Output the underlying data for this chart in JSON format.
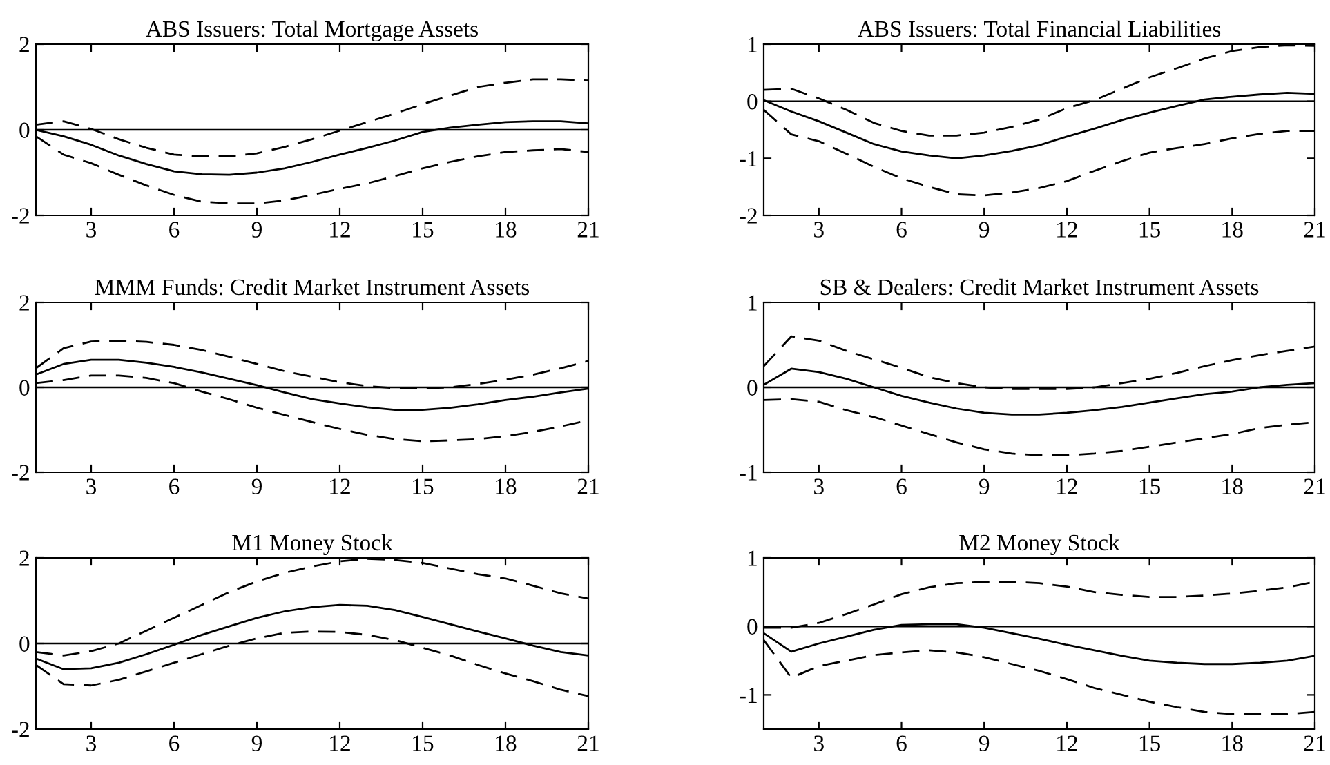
{
  "chart_data": [
    {
      "type": "line",
      "title": "ABS Issuers: Total Mortgage Assets",
      "x": [
        1,
        2,
        3,
        4,
        5,
        6,
        7,
        8,
        9,
        10,
        11,
        12,
        13,
        14,
        15,
        16,
        17,
        18,
        19,
        20,
        21
      ],
      "xlim": [
        1,
        21
      ],
      "xticks": [
        3,
        6,
        9,
        12,
        15,
        18,
        21
      ],
      "ylim": [
        -2,
        2
      ],
      "yticks": [
        -2,
        0,
        2
      ],
      "grid": false,
      "legend": false,
      "ref_lines": [
        {
          "axis": "y",
          "value": 0,
          "color": "#000000",
          "line_style": "solid"
        }
      ],
      "series": [
        {
          "color": "#000000",
          "line_style": "dashed",
          "values": [
            0.12,
            0.2,
            0.02,
            -0.22,
            -0.42,
            -0.58,
            -0.62,
            -0.62,
            -0.55,
            -0.4,
            -0.22,
            -0.02,
            0.18,
            0.38,
            0.6,
            0.8,
            1.0,
            1.1,
            1.18,
            1.18,
            1.15
          ]
        },
        {
          "color": "#000000",
          "line_style": "solid",
          "values": [
            0,
            -0.15,
            -0.35,
            -0.6,
            -0.8,
            -0.97,
            -1.04,
            -1.05,
            -1.0,
            -0.9,
            -0.75,
            -0.58,
            -0.42,
            -0.25,
            -0.05,
            0.05,
            0.12,
            0.18,
            0.2,
            0.2,
            0.15
          ]
        },
        {
          "color": "#000000",
          "line_style": "dashed",
          "values": [
            -0.15,
            -0.58,
            -0.78,
            -1.05,
            -1.3,
            -1.52,
            -1.68,
            -1.72,
            -1.72,
            -1.65,
            -1.52,
            -1.38,
            -1.25,
            -1.08,
            -0.9,
            -0.75,
            -0.62,
            -0.52,
            -0.48,
            -0.45,
            -0.52
          ]
        }
      ]
    },
    {
      "type": "line",
      "title": "ABS Issuers: Total Financial Liabilities",
      "x": [
        1,
        2,
        3,
        4,
        5,
        6,
        7,
        8,
        9,
        10,
        11,
        12,
        13,
        14,
        15,
        16,
        17,
        18,
        19,
        20,
        21
      ],
      "xlim": [
        1,
        21
      ],
      "xticks": [
        3,
        6,
        9,
        12,
        15,
        18,
        21
      ],
      "ylim": [
        -2,
        1
      ],
      "yticks": [
        -2,
        -1,
        0,
        1
      ],
      "grid": false,
      "legend": false,
      "ref_lines": [
        {
          "axis": "y",
          "value": 0,
          "color": "#000000",
          "line_style": "solid"
        }
      ],
      "series": [
        {
          "color": "#000000",
          "line_style": "dashed",
          "values": [
            0.2,
            0.22,
            0.05,
            -0.15,
            -0.38,
            -0.52,
            -0.6,
            -0.6,
            -0.55,
            -0.45,
            -0.32,
            -0.12,
            0.02,
            0.22,
            0.42,
            0.58,
            0.75,
            0.88,
            0.95,
            0.98,
            0.97
          ]
        },
        {
          "color": "#000000",
          "line_style": "solid",
          "values": [
            0.02,
            -0.18,
            -0.35,
            -0.55,
            -0.75,
            -0.88,
            -0.95,
            -1.0,
            -0.95,
            -0.87,
            -0.77,
            -0.62,
            -0.48,
            -0.33,
            -0.2,
            -0.08,
            0.03,
            0.08,
            0.12,
            0.15,
            0.13
          ]
        },
        {
          "color": "#000000",
          "line_style": "dashed",
          "values": [
            -0.15,
            -0.58,
            -0.7,
            -0.92,
            -1.15,
            -1.35,
            -1.5,
            -1.63,
            -1.65,
            -1.6,
            -1.52,
            -1.4,
            -1.22,
            -1.05,
            -0.9,
            -0.82,
            -0.75,
            -0.65,
            -0.57,
            -0.52,
            -0.52
          ]
        }
      ]
    },
    {
      "type": "line",
      "title": "MMM Funds: Credit Market Instrument Assets",
      "x": [
        1,
        2,
        3,
        4,
        5,
        6,
        7,
        8,
        9,
        10,
        11,
        12,
        13,
        14,
        15,
        16,
        17,
        18,
        19,
        20,
        21
      ],
      "xlim": [
        1,
        21
      ],
      "xticks": [
        3,
        6,
        9,
        12,
        15,
        18,
        21
      ],
      "ylim": [
        -2,
        2
      ],
      "yticks": [
        -2,
        0,
        2
      ],
      "grid": false,
      "legend": false,
      "ref_lines": [
        {
          "axis": "y",
          "value": 0,
          "color": "#000000",
          "line_style": "solid"
        }
      ],
      "series": [
        {
          "color": "#000000",
          "line_style": "dashed",
          "values": [
            0.45,
            0.92,
            1.08,
            1.1,
            1.07,
            1.0,
            0.88,
            0.72,
            0.55,
            0.38,
            0.25,
            0.12,
            0.03,
            -0.02,
            -0.02,
            0.0,
            0.08,
            0.18,
            0.3,
            0.45,
            0.62
          ]
        },
        {
          "color": "#000000",
          "line_style": "solid",
          "values": [
            0.3,
            0.55,
            0.65,
            0.65,
            0.58,
            0.48,
            0.35,
            0.2,
            0.05,
            -0.12,
            -0.28,
            -0.38,
            -0.47,
            -0.53,
            -0.53,
            -0.48,
            -0.4,
            -0.3,
            -0.22,
            -0.12,
            -0.03
          ]
        },
        {
          "color": "#000000",
          "line_style": "dashed",
          "values": [
            0.1,
            0.17,
            0.28,
            0.28,
            0.22,
            0.1,
            -0.1,
            -0.28,
            -0.48,
            -0.65,
            -0.82,
            -0.98,
            -1.12,
            -1.22,
            -1.27,
            -1.25,
            -1.22,
            -1.15,
            -1.05,
            -0.92,
            -0.78
          ]
        }
      ]
    },
    {
      "type": "line",
      "title": "SB & Dealers: Credit Market Instrument Assets",
      "x": [
        1,
        2,
        3,
        4,
        5,
        6,
        7,
        8,
        9,
        10,
        11,
        12,
        13,
        14,
        15,
        16,
        17,
        18,
        19,
        20,
        21
      ],
      "xlim": [
        1,
        21
      ],
      "xticks": [
        3,
        6,
        9,
        12,
        15,
        18,
        21
      ],
      "ylim": [
        -1,
        1
      ],
      "yticks": [
        -1,
        0,
        1
      ],
      "grid": false,
      "legend": false,
      "ref_lines": [
        {
          "axis": "y",
          "value": 0,
          "color": "#000000",
          "line_style": "solid"
        }
      ],
      "series": [
        {
          "color": "#000000",
          "line_style": "dashed",
          "values": [
            0.25,
            0.6,
            0.55,
            0.43,
            0.33,
            0.23,
            0.12,
            0.05,
            0.0,
            -0.02,
            -0.02,
            -0.02,
            0.0,
            0.05,
            0.1,
            0.17,
            0.25,
            0.32,
            0.38,
            0.43,
            0.48
          ]
        },
        {
          "color": "#000000",
          "line_style": "solid",
          "values": [
            0.03,
            0.22,
            0.18,
            0.1,
            0.0,
            -0.1,
            -0.18,
            -0.25,
            -0.3,
            -0.32,
            -0.32,
            -0.3,
            -0.27,
            -0.23,
            -0.18,
            -0.13,
            -0.08,
            -0.05,
            0.0,
            0.03,
            0.05
          ]
        },
        {
          "color": "#000000",
          "line_style": "dashed",
          "values": [
            -0.15,
            -0.14,
            -0.17,
            -0.27,
            -0.35,
            -0.45,
            -0.55,
            -0.65,
            -0.73,
            -0.78,
            -0.8,
            -0.8,
            -0.78,
            -0.75,
            -0.7,
            -0.65,
            -0.6,
            -0.55,
            -0.48,
            -0.44,
            -0.41
          ]
        }
      ]
    },
    {
      "type": "line",
      "title": "M1 Money Stock",
      "x": [
        1,
        2,
        3,
        4,
        5,
        6,
        7,
        8,
        9,
        10,
        11,
        12,
        13,
        14,
        15,
        16,
        17,
        18,
        19,
        20,
        21
      ],
      "xlim": [
        1,
        21
      ],
      "xticks": [
        3,
        6,
        9,
        12,
        15,
        18,
        21
      ],
      "ylim": [
        -2,
        2
      ],
      "yticks": [
        -2,
        0,
        2
      ],
      "grid": false,
      "legend": false,
      "ref_lines": [
        {
          "axis": "y",
          "value": 0,
          "color": "#000000",
          "line_style": "solid"
        }
      ],
      "series": [
        {
          "color": "#000000",
          "line_style": "dashed",
          "values": [
            -0.2,
            -0.28,
            -0.18,
            0.0,
            0.3,
            0.6,
            0.9,
            1.2,
            1.45,
            1.65,
            1.8,
            1.92,
            1.98,
            1.95,
            1.88,
            1.75,
            1.62,
            1.52,
            1.35,
            1.17,
            1.05
          ]
        },
        {
          "color": "#000000",
          "line_style": "solid",
          "values": [
            -0.35,
            -0.6,
            -0.58,
            -0.45,
            -0.25,
            -0.03,
            0.2,
            0.4,
            0.6,
            0.75,
            0.85,
            0.9,
            0.88,
            0.78,
            0.62,
            0.45,
            0.28,
            0.12,
            -0.05,
            -0.2,
            -0.28
          ]
        },
        {
          "color": "#000000",
          "line_style": "dashed",
          "values": [
            -0.5,
            -0.95,
            -0.98,
            -0.85,
            -0.65,
            -0.45,
            -0.25,
            -0.05,
            0.12,
            0.25,
            0.28,
            0.27,
            0.2,
            0.08,
            -0.1,
            -0.28,
            -0.5,
            -0.7,
            -0.88,
            -1.08,
            -1.23
          ]
        }
      ]
    },
    {
      "type": "line",
      "title": "M2 Money Stock",
      "x": [
        1,
        2,
        3,
        4,
        5,
        6,
        7,
        8,
        9,
        10,
        11,
        12,
        13,
        14,
        15,
        16,
        17,
        18,
        19,
        20,
        21
      ],
      "xlim": [
        1,
        21
      ],
      "xticks": [
        3,
        6,
        9,
        12,
        15,
        18,
        21
      ],
      "ylim": [
        -1.5,
        1
      ],
      "yticks": [
        -1,
        0,
        1
      ],
      "grid": false,
      "legend": false,
      "ref_lines": [
        {
          "axis": "y",
          "value": 0,
          "color": "#000000",
          "line_style": "solid"
        }
      ],
      "series": [
        {
          "color": "#000000",
          "line_style": "dashed",
          "values": [
            -0.02,
            -0.02,
            0.05,
            0.18,
            0.32,
            0.47,
            0.57,
            0.63,
            0.65,
            0.65,
            0.63,
            0.58,
            0.5,
            0.46,
            0.43,
            0.43,
            0.45,
            0.48,
            0.52,
            0.57,
            0.65
          ]
        },
        {
          "color": "#000000",
          "line_style": "solid",
          "values": [
            -0.1,
            -0.37,
            -0.25,
            -0.15,
            -0.05,
            0.02,
            0.03,
            0.03,
            -0.02,
            -0.1,
            -0.18,
            -0.27,
            -0.35,
            -0.43,
            -0.5,
            -0.53,
            -0.55,
            -0.55,
            -0.53,
            -0.5,
            -0.43
          ]
        },
        {
          "color": "#000000",
          "line_style": "dashed",
          "values": [
            -0.2,
            -0.75,
            -0.58,
            -0.5,
            -0.42,
            -0.38,
            -0.35,
            -0.38,
            -0.45,
            -0.55,
            -0.65,
            -0.77,
            -0.9,
            -1.0,
            -1.1,
            -1.18,
            -1.25,
            -1.28,
            -1.28,
            -1.28,
            -1.25
          ]
        }
      ]
    }
  ]
}
